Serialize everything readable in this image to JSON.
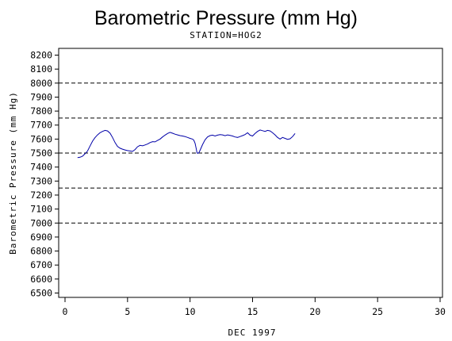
{
  "chart_data": {
    "type": "line",
    "title": "Barometric Pressure (mm Hg)",
    "subtitle": "STATION=HOG2",
    "xlabel": "DEC 1997",
    "ylabel": "Barometric Pressure (mm Hg)",
    "xlim": [
      0,
      30
    ],
    "ylim": [
      6500,
      8200
    ],
    "x_ticks": [
      0,
      5,
      10,
      15,
      20,
      25,
      30
    ],
    "y_ticks": [
      6500,
      6600,
      6700,
      6800,
      6900,
      7000,
      7100,
      7200,
      7300,
      7400,
      7500,
      7600,
      7700,
      7800,
      7900,
      8000,
      8100,
      8200
    ],
    "reference_lines": [
      7000,
      7250,
      7500,
      7750,
      8000
    ],
    "grid": false,
    "line_color": "#0000a8",
    "series": [
      {
        "values": [
          [
            1.0,
            7468
          ],
          [
            1.2,
            7470
          ],
          [
            1.4,
            7478
          ],
          [
            1.6,
            7495
          ],
          [
            1.8,
            7515
          ],
          [
            2.0,
            7550
          ],
          [
            2.2,
            7585
          ],
          [
            2.4,
            7610
          ],
          [
            2.6,
            7630
          ],
          [
            2.8,
            7645
          ],
          [
            3.0,
            7655
          ],
          [
            3.2,
            7662
          ],
          [
            3.4,
            7658
          ],
          [
            3.6,
            7642
          ],
          [
            3.8,
            7612
          ],
          [
            4.0,
            7575
          ],
          [
            4.2,
            7548
          ],
          [
            4.4,
            7535
          ],
          [
            4.6,
            7528
          ],
          [
            4.8,
            7522
          ],
          [
            5.0,
            7518
          ],
          [
            5.2,
            7515
          ],
          [
            5.4,
            7512
          ],
          [
            5.6,
            7525
          ],
          [
            5.8,
            7545
          ],
          [
            6.0,
            7555
          ],
          [
            6.2,
            7552
          ],
          [
            6.4,
            7558
          ],
          [
            6.6,
            7565
          ],
          [
            6.8,
            7575
          ],
          [
            7.0,
            7582
          ],
          [
            7.2,
            7580
          ],
          [
            7.4,
            7590
          ],
          [
            7.6,
            7600
          ],
          [
            7.8,
            7615
          ],
          [
            8.0,
            7628
          ],
          [
            8.2,
            7640
          ],
          [
            8.4,
            7648
          ],
          [
            8.6,
            7642
          ],
          [
            8.8,
            7635
          ],
          [
            9.0,
            7630
          ],
          [
            9.2,
            7625
          ],
          [
            9.4,
            7622
          ],
          [
            9.6,
            7618
          ],
          [
            9.8,
            7612
          ],
          [
            10.0,
            7605
          ],
          [
            10.2,
            7600
          ],
          [
            10.3,
            7592
          ],
          [
            10.4,
            7570
          ],
          [
            10.5,
            7530
          ],
          [
            10.55,
            7505
          ],
          [
            10.6,
            7498
          ],
          [
            10.7,
            7502
          ],
          [
            10.8,
            7520
          ],
          [
            11.0,
            7560
          ],
          [
            11.2,
            7595
          ],
          [
            11.4,
            7615
          ],
          [
            11.6,
            7625
          ],
          [
            11.8,
            7628
          ],
          [
            12.0,
            7622
          ],
          [
            12.2,
            7628
          ],
          [
            12.4,
            7632
          ],
          [
            12.6,
            7630
          ],
          [
            12.8,
            7624
          ],
          [
            13.0,
            7630
          ],
          [
            13.2,
            7626
          ],
          [
            13.4,
            7622
          ],
          [
            13.6,
            7615
          ],
          [
            13.8,
            7612
          ],
          [
            14.0,
            7618
          ],
          [
            14.2,
            7625
          ],
          [
            14.4,
            7632
          ],
          [
            14.6,
            7645
          ],
          [
            14.8,
            7628
          ],
          [
            15.0,
            7622
          ],
          [
            15.2,
            7640
          ],
          [
            15.4,
            7655
          ],
          [
            15.6,
            7665
          ],
          [
            15.8,
            7660
          ],
          [
            16.0,
            7655
          ],
          [
            16.2,
            7662
          ],
          [
            16.4,
            7658
          ],
          [
            16.6,
            7645
          ],
          [
            16.8,
            7630
          ],
          [
            17.0,
            7612
          ],
          [
            17.2,
            7600
          ],
          [
            17.4,
            7612
          ],
          [
            17.6,
            7605
          ],
          [
            17.8,
            7598
          ],
          [
            18.0,
            7602
          ],
          [
            18.2,
            7618
          ],
          [
            18.4,
            7640
          ]
        ]
      }
    ]
  }
}
